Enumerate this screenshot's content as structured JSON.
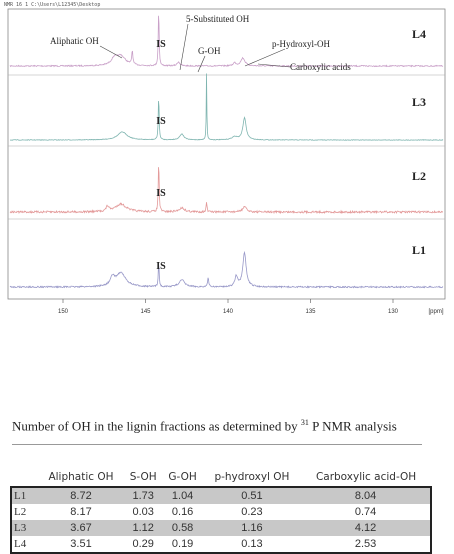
{
  "spectrum": {
    "header": "NMR 16 1 C:\\Users\\L12345\\Desktop",
    "panels": [
      "L4",
      "L3",
      "L2",
      "L1"
    ],
    "is_label": "IS",
    "annotations": [
      "Aliphatic OH",
      "5-Substituted OH",
      "G-OH",
      "p-Hydroxyl-OH",
      "Carboxylic acids"
    ],
    "x_ticks": [
      "150",
      "145",
      "140",
      "135",
      "130"
    ],
    "x_unit": "[ppm]"
  },
  "table": {
    "caption_pre": "Number of OH in the lignin fractions as determined by ",
    "caption_sup": "31",
    "caption_post": " P NMR analysis",
    "columns": [
      "Aliphatic OH",
      "S-OH",
      "G-OH",
      "p-hydroxyl OH",
      "Carboxylic acid-OH"
    ],
    "rows": [
      [
        "L1",
        8.72,
        1.73,
        1.04,
        0.51,
        8.04
      ],
      [
        "L2",
        8.17,
        0.03,
        0.16,
        0.23,
        0.74
      ],
      [
        "L3",
        3.67,
        1.12,
        0.58,
        1.16,
        4.12
      ],
      [
        "L4",
        3.51,
        0.29,
        0.19,
        0.13,
        2.53
      ]
    ]
  }
}
